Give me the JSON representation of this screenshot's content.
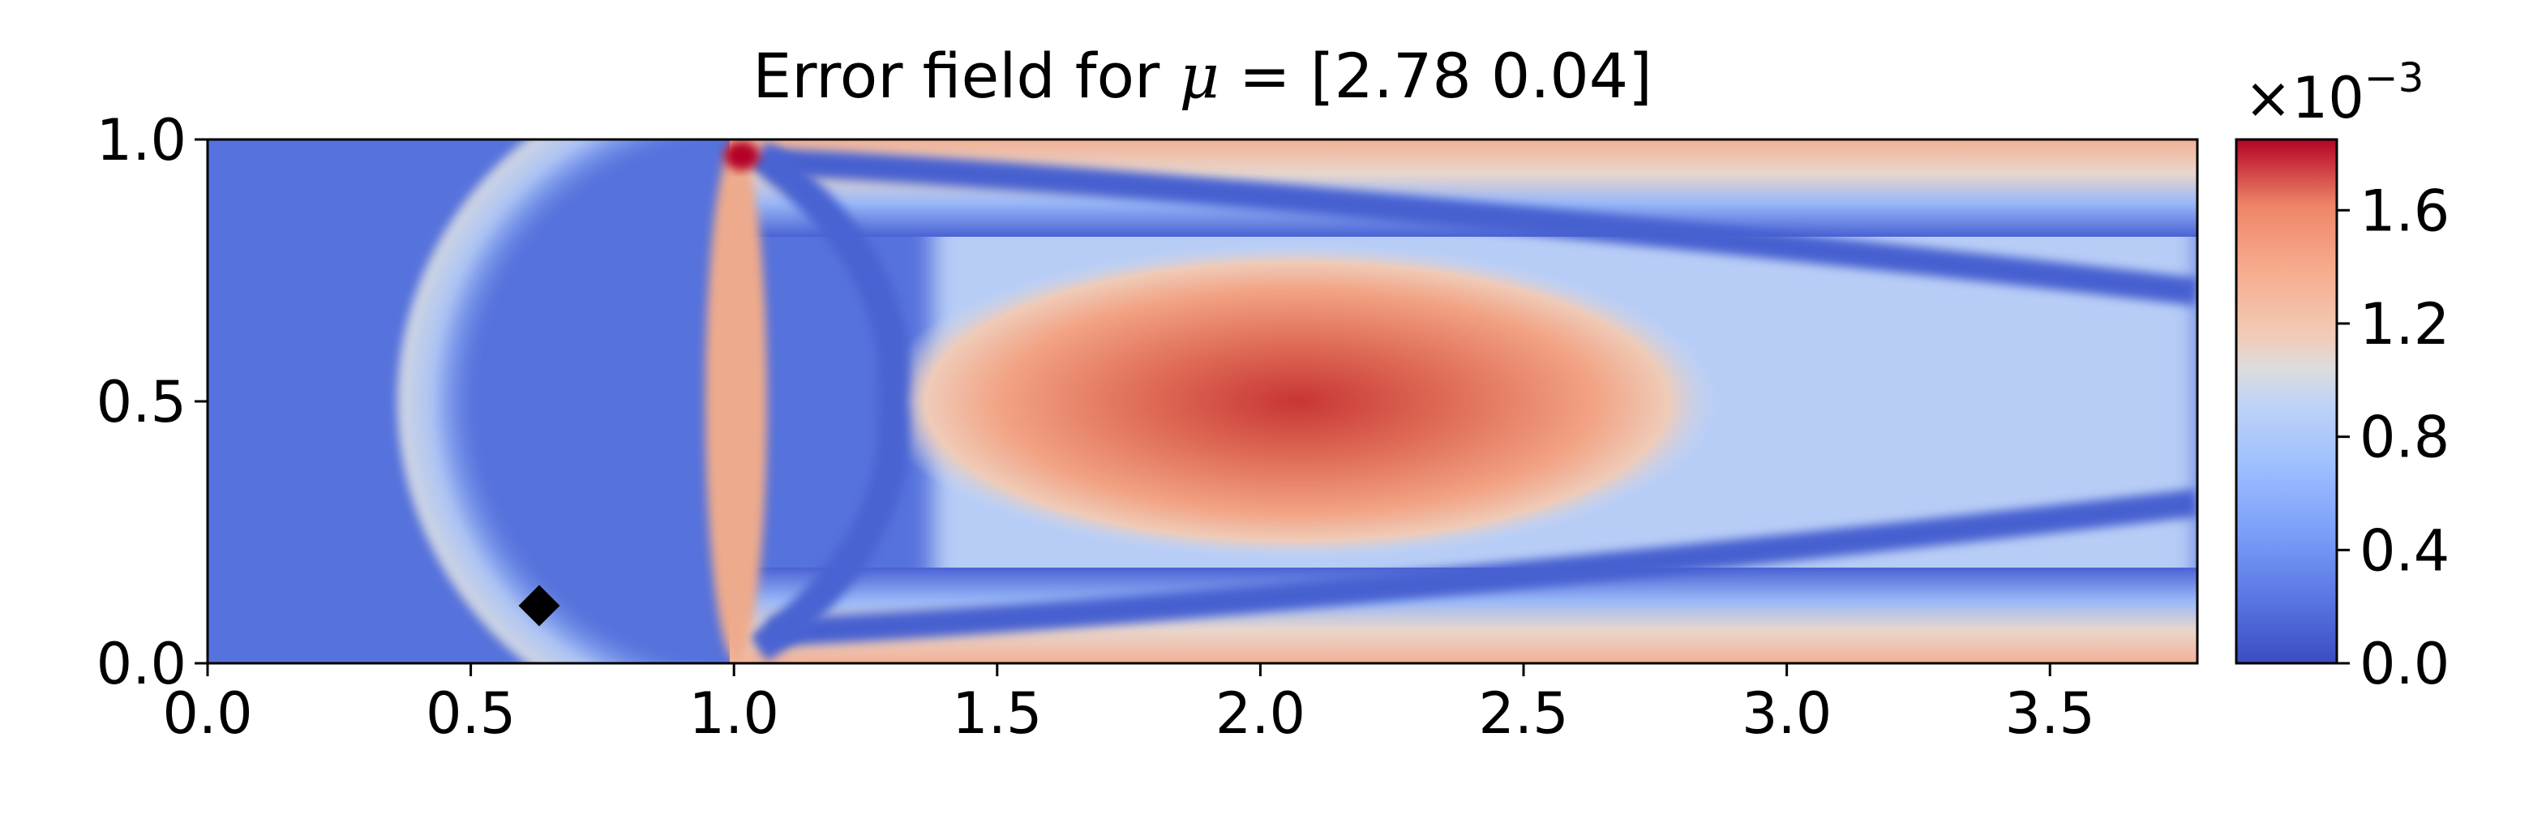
{
  "chart_data": {
    "type": "heatmap",
    "title_prefix": "Error field for ",
    "title_symbol": "μ",
    "title_suffix": " = [2.78 0.04]",
    "xlabel": "",
    "ylabel": "",
    "xlim": [
      0.0,
      3.78
    ],
    "ylim": [
      0.0,
      1.0
    ],
    "x_ticks": [
      "0.0",
      "0.5",
      "1.0",
      "1.5",
      "2.0",
      "2.5",
      "3.0",
      "3.5"
    ],
    "y_ticks": [
      "0.0",
      "0.5",
      "1.0"
    ],
    "colormap": "coolwarm",
    "colorbar": {
      "min": 0.0,
      "max": 1.85,
      "ticks": [
        "0.0",
        "0.4",
        "0.8",
        "1.2",
        "1.6"
      ],
      "scale_base": "×10",
      "scale_exponent": "−3"
    },
    "marker": {
      "shape": "diamond",
      "x": 0.63,
      "y": 0.11,
      "color": "#000000"
    },
    "grid": false
  }
}
